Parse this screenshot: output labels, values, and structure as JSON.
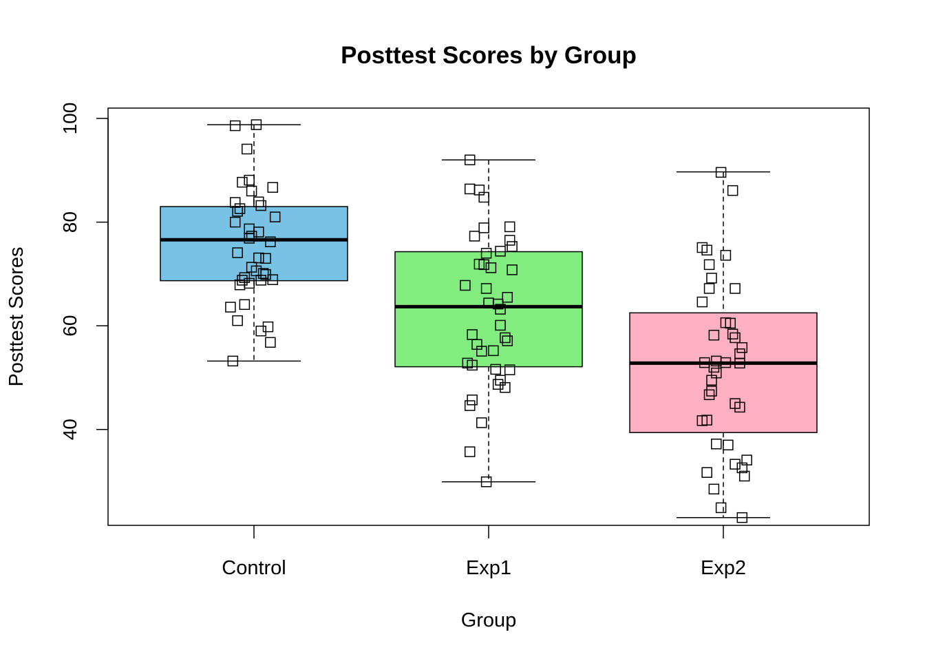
{
  "chart_data": {
    "type": "boxplot",
    "title": "Posttest Scores by Group",
    "xlabel": "Group",
    "ylabel": "Posttest Scores",
    "categories": [
      "Control",
      "Exp1",
      "Exp2"
    ],
    "ylim": [
      21.5,
      102
    ],
    "yticks": [
      40,
      60,
      80,
      100
    ],
    "grid": false,
    "legend": "none",
    "colors": [
      "#77c2e5",
      "#80ed7e",
      "#fdb0c2"
    ],
    "boxes": [
      {
        "name": "Control",
        "min": 53.2,
        "q1": 68.7,
        "median": 76.6,
        "q3": 83.0,
        "max": 98.8
      },
      {
        "name": "Exp1",
        "min": 29.9,
        "q1": 52.1,
        "median": 63.7,
        "q3": 74.3,
        "max": 92.0
      },
      {
        "name": "Exp2",
        "min": 23.0,
        "q1": 39.4,
        "median": 52.8,
        "q3": 62.5,
        "max": 89.7
      }
    ],
    "points": [
      [
        [
          -0.08,
          98.6
        ],
        [
          0.01,
          98.8
        ],
        [
          -0.03,
          94.1
        ],
        [
          -0.05,
          87.7
        ],
        [
          -0.02,
          88.1
        ],
        [
          -0.01,
          86.0
        ],
        [
          0.08,
          86.7
        ],
        [
          -0.08,
          83.8
        ],
        [
          0.02,
          83.9
        ],
        [
          0.03,
          83.2
        ],
        [
          -0.06,
          82.6
        ],
        [
          -0.07,
          82.1
        ],
        [
          0.09,
          81.0
        ],
        [
          -0.08,
          80.0
        ],
        [
          -0.02,
          78.7
        ],
        [
          0.02,
          78.1
        ],
        [
          -0.01,
          77.3
        ],
        [
          -0.02,
          76.9
        ],
        [
          0.07,
          76.2
        ],
        [
          -0.07,
          74.1
        ],
        [
          0.02,
          73.1
        ],
        [
          0.05,
          73.0
        ],
        [
          -0.01,
          71.3
        ],
        [
          0.01,
          70.6
        ],
        [
          0.04,
          70.1
        ],
        [
          0.05,
          69.9
        ],
        [
          -0.04,
          69.3
        ],
        [
          -0.05,
          68.8
        ],
        [
          0.03,
          68.8
        ],
        [
          0.08,
          68.9
        ],
        [
          -0.02,
          68.2
        ],
        [
          -0.06,
          67.9
        ],
        [
          -0.1,
          63.6
        ],
        [
          -0.04,
          64.1
        ],
        [
          -0.07,
          61.0
        ],
        [
          0.06,
          59.8
        ],
        [
          0.03,
          59.0
        ],
        [
          0.07,
          56.8
        ],
        [
          -0.09,
          53.2
        ]
      ],
      [
        [
          -0.08,
          92.0
        ],
        [
          -0.08,
          86.4
        ],
        [
          -0.04,
          86.2
        ],
        [
          -0.02,
          84.8
        ],
        [
          0.09,
          79.1
        ],
        [
          -0.02,
          78.9
        ],
        [
          -0.06,
          77.3
        ],
        [
          0.09,
          76.5
        ],
        [
          0.1,
          75.3
        ],
        [
          0.05,
          74.4
        ],
        [
          -0.01,
          74.0
        ],
        [
          -0.04,
          71.9
        ],
        [
          -0.02,
          71.8
        ],
        [
          0.01,
          71.2
        ],
        [
          0.1,
          70.8
        ],
        [
          -0.1,
          67.8
        ],
        [
          -0.01,
          67.2
        ],
        [
          0.08,
          65.5
        ],
        [
          0.0,
          64.4
        ],
        [
          0.04,
          64.2
        ],
        [
          0.05,
          63.2
        ],
        [
          0.05,
          60.1
        ],
        [
          -0.07,
          58.3
        ],
        [
          0.07,
          57.7
        ],
        [
          0.08,
          57.1
        ],
        [
          -0.05,
          56.4
        ],
        [
          -0.03,
          55.1
        ],
        [
          0.02,
          55.2
        ],
        [
          -0.09,
          52.8
        ],
        [
          -0.07,
          52.4
        ],
        [
          0.03,
          51.6
        ],
        [
          0.09,
          51.5
        ],
        [
          0.05,
          49.5
        ],
        [
          0.04,
          48.7
        ],
        [
          0.07,
          48.1
        ],
        [
          -0.07,
          45.7
        ],
        [
          -0.08,
          44.6
        ],
        [
          -0.03,
          41.3
        ],
        [
          -0.08,
          35.7
        ],
        [
          -0.01,
          29.9
        ]
      ],
      [
        [
          -0.01,
          89.6
        ],
        [
          0.04,
          86.1
        ],
        [
          -0.09,
          75.1
        ],
        [
          -0.07,
          74.6
        ],
        [
          0.01,
          73.6
        ],
        [
          -0.06,
          71.8
        ],
        [
          -0.05,
          69.2
        ],
        [
          -0.06,
          67.2
        ],
        [
          0.05,
          67.2
        ],
        [
          -0.09,
          64.6
        ],
        [
          0.01,
          60.6
        ],
        [
          0.03,
          60.5
        ],
        [
          0.04,
          58.4
        ],
        [
          -0.04,
          58.2
        ],
        [
          0.05,
          57.7
        ],
        [
          0.08,
          55.8
        ],
        [
          0.07,
          54.6
        ],
        [
          -0.08,
          52.9
        ],
        [
          -0.03,
          53.2
        ],
        [
          0.01,
          52.9
        ],
        [
          -0.04,
          52.0
        ],
        [
          0.07,
          52.8
        ],
        [
          -0.03,
          50.9
        ],
        [
          -0.05,
          49.5
        ],
        [
          -0.05,
          47.4
        ],
        [
          -0.06,
          46.7
        ],
        [
          0.05,
          45.0
        ],
        [
          0.07,
          44.3
        ],
        [
          -0.09,
          41.7
        ],
        [
          -0.07,
          41.8
        ],
        [
          -0.03,
          37.2
        ],
        [
          0.02,
          37.0
        ],
        [
          0.1,
          34.1
        ],
        [
          0.05,
          33.3
        ],
        [
          0.08,
          32.6
        ],
        [
          0.09,
          31.0
        ],
        [
          -0.07,
          31.7
        ],
        [
          -0.04,
          28.5
        ],
        [
          -0.01,
          24.9
        ],
        [
          0.08,
          23.0
        ]
      ]
    ]
  }
}
